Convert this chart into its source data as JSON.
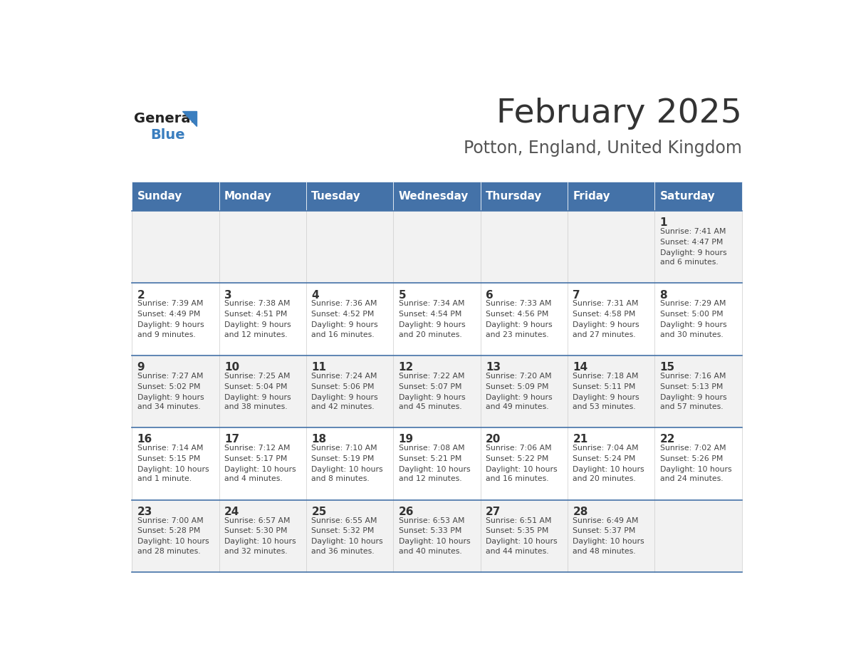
{
  "title": "February 2025",
  "subtitle": "Potton, England, United Kingdom",
  "days_of_week": [
    "Sunday",
    "Monday",
    "Tuesday",
    "Wednesday",
    "Thursday",
    "Friday",
    "Saturday"
  ],
  "header_bg": "#4472a8",
  "header_text": "#ffffff",
  "row_bg_light": "#f2f2f2",
  "row_bg_white": "#ffffff",
  "cell_border_color": "#4472a8",
  "title_color": "#333333",
  "subtitle_color": "#555555",
  "day_number_color": "#333333",
  "cell_text_color": "#444444",
  "logo_general_color": "#222222",
  "logo_blue_color": "#3a7ebf",
  "calendar_data": {
    "week1": [
      {
        "date": "",
        "sunrise": "",
        "sunset": "",
        "daylight": ""
      },
      {
        "date": "",
        "sunrise": "",
        "sunset": "",
        "daylight": ""
      },
      {
        "date": "",
        "sunrise": "",
        "sunset": "",
        "daylight": ""
      },
      {
        "date": "",
        "sunrise": "",
        "sunset": "",
        "daylight": ""
      },
      {
        "date": "",
        "sunrise": "",
        "sunset": "",
        "daylight": ""
      },
      {
        "date": "",
        "sunrise": "",
        "sunset": "",
        "daylight": ""
      },
      {
        "date": "1",
        "sunrise": "Sunrise: 7:41 AM",
        "sunset": "Sunset: 4:47 PM",
        "daylight": "Daylight: 9 hours\nand 6 minutes."
      }
    ],
    "week2": [
      {
        "date": "2",
        "sunrise": "Sunrise: 7:39 AM",
        "sunset": "Sunset: 4:49 PM",
        "daylight": "Daylight: 9 hours\nand 9 minutes."
      },
      {
        "date": "3",
        "sunrise": "Sunrise: 7:38 AM",
        "sunset": "Sunset: 4:51 PM",
        "daylight": "Daylight: 9 hours\nand 12 minutes."
      },
      {
        "date": "4",
        "sunrise": "Sunrise: 7:36 AM",
        "sunset": "Sunset: 4:52 PM",
        "daylight": "Daylight: 9 hours\nand 16 minutes."
      },
      {
        "date": "5",
        "sunrise": "Sunrise: 7:34 AM",
        "sunset": "Sunset: 4:54 PM",
        "daylight": "Daylight: 9 hours\nand 20 minutes."
      },
      {
        "date": "6",
        "sunrise": "Sunrise: 7:33 AM",
        "sunset": "Sunset: 4:56 PM",
        "daylight": "Daylight: 9 hours\nand 23 minutes."
      },
      {
        "date": "7",
        "sunrise": "Sunrise: 7:31 AM",
        "sunset": "Sunset: 4:58 PM",
        "daylight": "Daylight: 9 hours\nand 27 minutes."
      },
      {
        "date": "8",
        "sunrise": "Sunrise: 7:29 AM",
        "sunset": "Sunset: 5:00 PM",
        "daylight": "Daylight: 9 hours\nand 30 minutes."
      }
    ],
    "week3": [
      {
        "date": "9",
        "sunrise": "Sunrise: 7:27 AM",
        "sunset": "Sunset: 5:02 PM",
        "daylight": "Daylight: 9 hours\nand 34 minutes."
      },
      {
        "date": "10",
        "sunrise": "Sunrise: 7:25 AM",
        "sunset": "Sunset: 5:04 PM",
        "daylight": "Daylight: 9 hours\nand 38 minutes."
      },
      {
        "date": "11",
        "sunrise": "Sunrise: 7:24 AM",
        "sunset": "Sunset: 5:06 PM",
        "daylight": "Daylight: 9 hours\nand 42 minutes."
      },
      {
        "date": "12",
        "sunrise": "Sunrise: 7:22 AM",
        "sunset": "Sunset: 5:07 PM",
        "daylight": "Daylight: 9 hours\nand 45 minutes."
      },
      {
        "date": "13",
        "sunrise": "Sunrise: 7:20 AM",
        "sunset": "Sunset: 5:09 PM",
        "daylight": "Daylight: 9 hours\nand 49 minutes."
      },
      {
        "date": "14",
        "sunrise": "Sunrise: 7:18 AM",
        "sunset": "Sunset: 5:11 PM",
        "daylight": "Daylight: 9 hours\nand 53 minutes."
      },
      {
        "date": "15",
        "sunrise": "Sunrise: 7:16 AM",
        "sunset": "Sunset: 5:13 PM",
        "daylight": "Daylight: 9 hours\nand 57 minutes."
      }
    ],
    "week4": [
      {
        "date": "16",
        "sunrise": "Sunrise: 7:14 AM",
        "sunset": "Sunset: 5:15 PM",
        "daylight": "Daylight: 10 hours\nand 1 minute."
      },
      {
        "date": "17",
        "sunrise": "Sunrise: 7:12 AM",
        "sunset": "Sunset: 5:17 PM",
        "daylight": "Daylight: 10 hours\nand 4 minutes."
      },
      {
        "date": "18",
        "sunrise": "Sunrise: 7:10 AM",
        "sunset": "Sunset: 5:19 PM",
        "daylight": "Daylight: 10 hours\nand 8 minutes."
      },
      {
        "date": "19",
        "sunrise": "Sunrise: 7:08 AM",
        "sunset": "Sunset: 5:21 PM",
        "daylight": "Daylight: 10 hours\nand 12 minutes."
      },
      {
        "date": "20",
        "sunrise": "Sunrise: 7:06 AM",
        "sunset": "Sunset: 5:22 PM",
        "daylight": "Daylight: 10 hours\nand 16 minutes."
      },
      {
        "date": "21",
        "sunrise": "Sunrise: 7:04 AM",
        "sunset": "Sunset: 5:24 PM",
        "daylight": "Daylight: 10 hours\nand 20 minutes."
      },
      {
        "date": "22",
        "sunrise": "Sunrise: 7:02 AM",
        "sunset": "Sunset: 5:26 PM",
        "daylight": "Daylight: 10 hours\nand 24 minutes."
      }
    ],
    "week5": [
      {
        "date": "23",
        "sunrise": "Sunrise: 7:00 AM",
        "sunset": "Sunset: 5:28 PM",
        "daylight": "Daylight: 10 hours\nand 28 minutes."
      },
      {
        "date": "24",
        "sunrise": "Sunrise: 6:57 AM",
        "sunset": "Sunset: 5:30 PM",
        "daylight": "Daylight: 10 hours\nand 32 minutes."
      },
      {
        "date": "25",
        "sunrise": "Sunrise: 6:55 AM",
        "sunset": "Sunset: 5:32 PM",
        "daylight": "Daylight: 10 hours\nand 36 minutes."
      },
      {
        "date": "26",
        "sunrise": "Sunrise: 6:53 AM",
        "sunset": "Sunset: 5:33 PM",
        "daylight": "Daylight: 10 hours\nand 40 minutes."
      },
      {
        "date": "27",
        "sunrise": "Sunrise: 6:51 AM",
        "sunset": "Sunset: 5:35 PM",
        "daylight": "Daylight: 10 hours\nand 44 minutes."
      },
      {
        "date": "28",
        "sunrise": "Sunrise: 6:49 AM",
        "sunset": "Sunset: 5:37 PM",
        "daylight": "Daylight: 10 hours\nand 48 minutes."
      },
      {
        "date": "",
        "sunrise": "",
        "sunset": "",
        "daylight": ""
      }
    ]
  }
}
